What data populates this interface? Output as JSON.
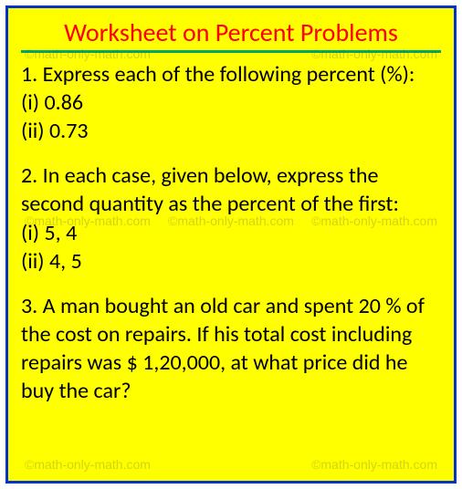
{
  "title": "Worksheet on Percent Problems",
  "questions": [
    {
      "prompt": "1. Express each of the following percent (%):",
      "parts": [
        "(i) 0.86",
        "(ii) 0.73"
      ]
    },
    {
      "prompt": "2. In each case, given below, express the second quantity as the percent of the first:",
      "parts": [
        "(i) 5, 4",
        "(ii) 4, 5"
      ]
    },
    {
      "prompt": "3. A man bought an old car and spent 20 % of the cost on repairs. If his total cost including repairs was $ 1,20,000, at what price did he buy the car?",
      "parts": []
    }
  ],
  "watermark_text": "©math-only-math.com",
  "colors": {
    "background": "#ffff00",
    "border": "#0033cc",
    "title": "#ff0000",
    "underline": "#00aa66",
    "body_text": "#000000",
    "watermark": "rgba(80,80,80,0.25)"
  },
  "typography": {
    "title_fontsize": 28,
    "body_fontsize": 24,
    "watermark_fontsize": 14,
    "font_family": "Calibri, Segoe UI, Arial, sans-serif"
  }
}
